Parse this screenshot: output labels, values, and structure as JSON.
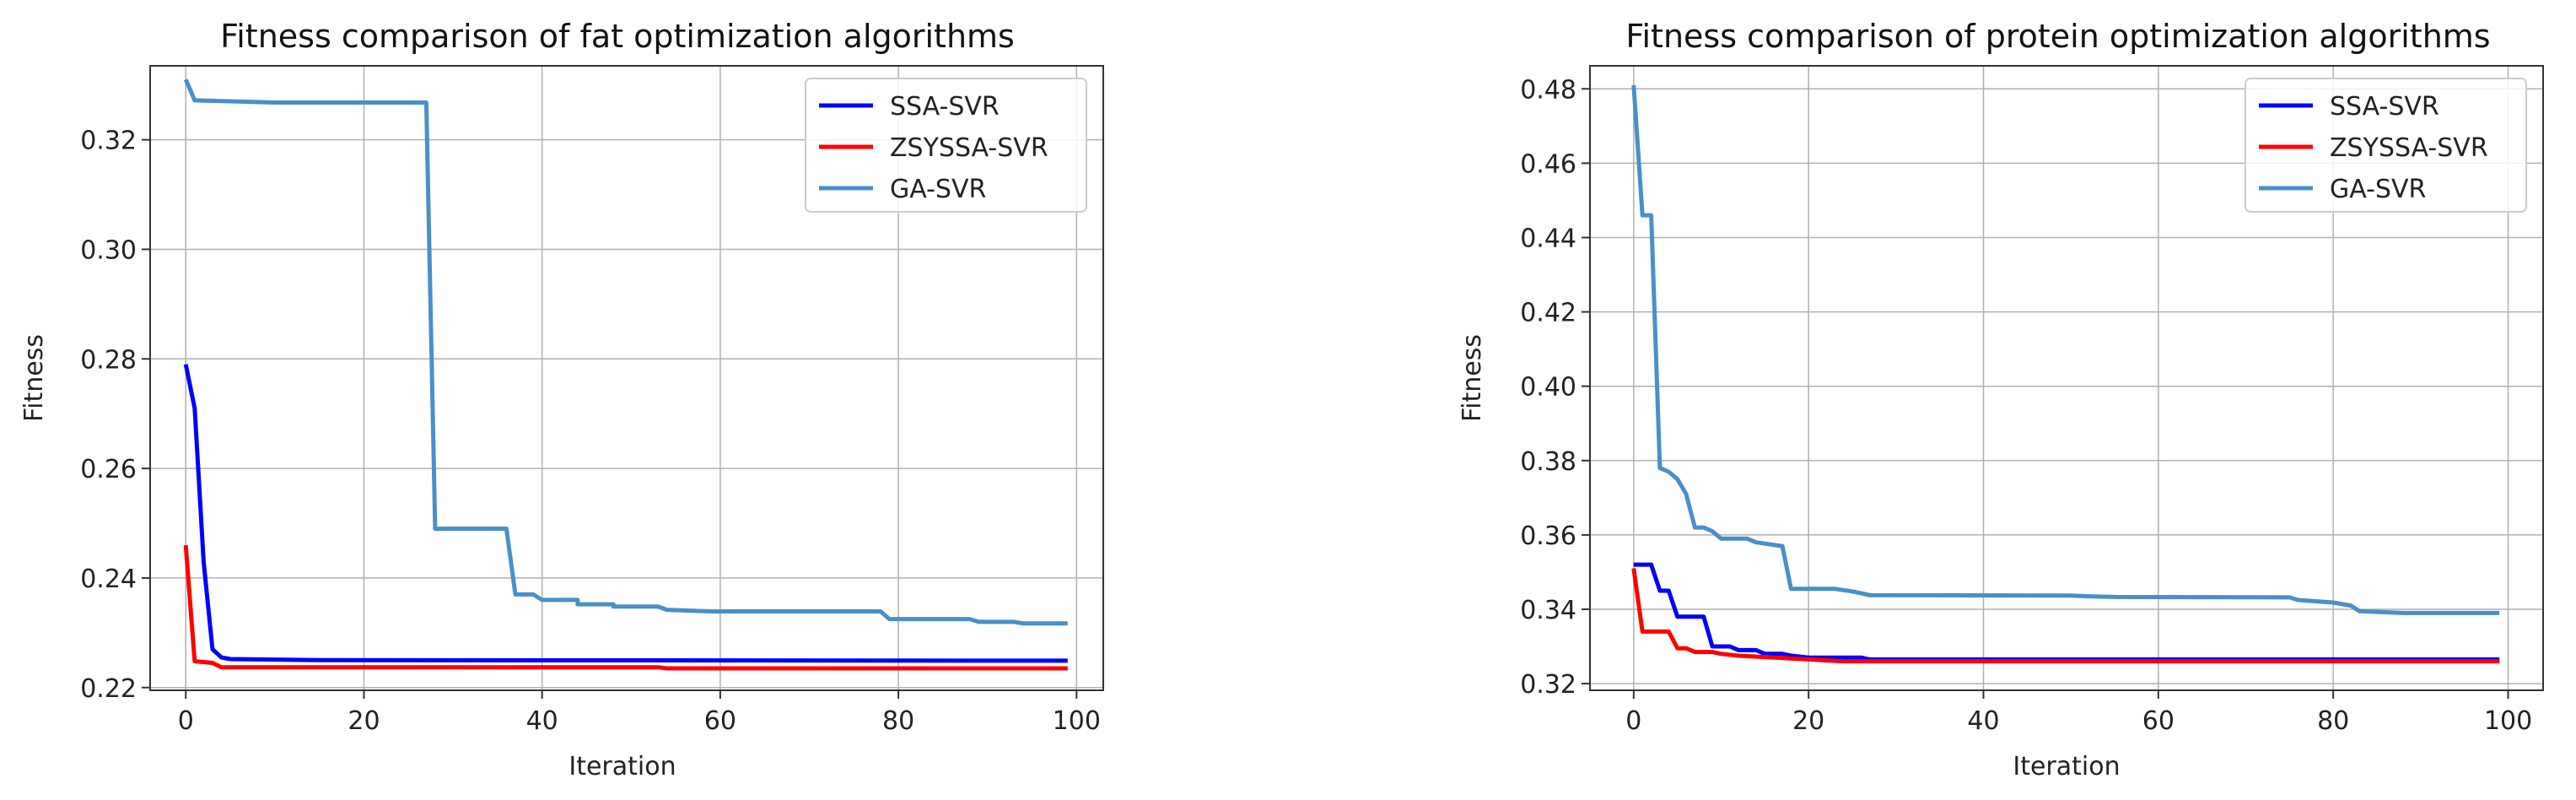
{
  "chart_data": [
    {
      "type": "line",
      "title": "Fitness comparison of fat optimization algorithms",
      "xlabel": "Iteration",
      "ylabel": "Fitness",
      "xlim": [
        -4,
        103
      ],
      "ylim": [
        0.2195,
        0.3335
      ],
      "xticks": [
        0,
        20,
        40,
        60,
        80,
        100
      ],
      "yticks": [
        0.22,
        0.24,
        0.26,
        0.28,
        0.3,
        0.32
      ],
      "ytick_labels": [
        "0.22",
        "0.24",
        "0.26",
        "0.28",
        "0.30",
        "0.32"
      ],
      "grid": true,
      "legend_position": "top-right",
      "series": [
        {
          "name": "SSA-SVR",
          "color": "#0000ff",
          "points": [
            [
              0,
              0.279
            ],
            [
              1,
              0.271
            ],
            [
              2,
              0.243
            ],
            [
              3,
              0.227
            ],
            [
              4,
              0.2255
            ],
            [
              5,
              0.2252
            ],
            [
              15,
              0.225
            ],
            [
              99,
              0.2249
            ]
          ]
        },
        {
          "name": "ZSYSSA-SVR",
          "color": "#ff0000",
          "points": [
            [
              0,
              0.246
            ],
            [
              1,
              0.2248
            ],
            [
              3,
              0.2245
            ],
            [
              4,
              0.2237
            ],
            [
              53,
              0.2237
            ],
            [
              54,
              0.2235
            ],
            [
              99,
              0.2235
            ]
          ]
        },
        {
          "name": "GA-SVR",
          "color": "#4a8fc8",
          "points": [
            [
              0,
              0.331
            ],
            [
              1,
              0.3272
            ],
            [
              10,
              0.3268
            ],
            [
              26,
              0.3268
            ],
            [
              27,
              0.3268
            ],
            [
              28,
              0.249
            ],
            [
              36,
              0.249
            ],
            [
              37,
              0.237
            ],
            [
              39,
              0.237
            ],
            [
              40,
              0.236
            ],
            [
              44,
              0.236
            ],
            [
              44,
              0.2352
            ],
            [
              48,
              0.2352
            ],
            [
              48,
              0.2348
            ],
            [
              53,
              0.2348
            ],
            [
              54,
              0.2342
            ],
            [
              59,
              0.2339
            ],
            [
              78,
              0.2339
            ],
            [
              79,
              0.2325
            ],
            [
              88,
              0.2325
            ],
            [
              89,
              0.232
            ],
            [
              93,
              0.232
            ],
            [
              94,
              0.2317
            ],
            [
              99,
              0.2317
            ]
          ]
        }
      ]
    },
    {
      "type": "line",
      "title": "Fitness comparison of protein optimization algorithms",
      "xlabel": "Iteration",
      "ylabel": "Fitness",
      "xlim": [
        -5,
        104
      ],
      "ylim": [
        0.3182,
        0.4862
      ],
      "xticks": [
        0,
        20,
        40,
        60,
        80,
        100
      ],
      "yticks": [
        0.32,
        0.34,
        0.36,
        0.38,
        0.4,
        0.42,
        0.44,
        0.46,
        0.48
      ],
      "ytick_labels": [
        "0.32",
        "0.34",
        "0.36",
        "0.38",
        "0.40",
        "0.42",
        "0.44",
        "0.46",
        "0.48"
      ],
      "grid": true,
      "legend_position": "top-right",
      "series": [
        {
          "name": "SSA-SVR",
          "color": "#0000ff",
          "points": [
            [
              0,
              0.352
            ],
            [
              2,
              0.352
            ],
            [
              3,
              0.345
            ],
            [
              4,
              0.345
            ],
            [
              5,
              0.338
            ],
            [
              8,
              0.338
            ],
            [
              9,
              0.33
            ],
            [
              11,
              0.33
            ],
            [
              12,
              0.329
            ],
            [
              14,
              0.329
            ],
            [
              15,
              0.328
            ],
            [
              17,
              0.328
            ],
            [
              18,
              0.3275
            ],
            [
              20,
              0.327
            ],
            [
              26,
              0.327
            ],
            [
              27,
              0.3265
            ],
            [
              99,
              0.3265
            ]
          ]
        },
        {
          "name": "ZSYSSA-SVR",
          "color": "#ff0000",
          "points": [
            [
              0,
              0.351
            ],
            [
              1,
              0.334
            ],
            [
              4,
              0.334
            ],
            [
              5,
              0.3295
            ],
            [
              6,
              0.3295
            ],
            [
              7,
              0.3285
            ],
            [
              9,
              0.3285
            ],
            [
              10,
              0.328
            ],
            [
              12,
              0.3275
            ],
            [
              20,
              0.3265
            ],
            [
              24,
              0.326
            ],
            [
              99,
              0.326
            ]
          ]
        },
        {
          "name": "GA-SVR",
          "color": "#4a8fc8",
          "points": [
            [
              0,
              0.481
            ],
            [
              1,
              0.446
            ],
            [
              2,
              0.446
            ],
            [
              3,
              0.378
            ],
            [
              4,
              0.377
            ],
            [
              5,
              0.375
            ],
            [
              6,
              0.371
            ],
            [
              7,
              0.362
            ],
            [
              8,
              0.362
            ],
            [
              9,
              0.361
            ],
            [
              10,
              0.359
            ],
            [
              13,
              0.359
            ],
            [
              14,
              0.358
            ],
            [
              17,
              0.357
            ],
            [
              18,
              0.3455
            ],
            [
              23,
              0.3455
            ],
            [
              25,
              0.3448
            ],
            [
              27,
              0.3438
            ],
            [
              50,
              0.3437
            ],
            [
              52,
              0.3435
            ],
            [
              55,
              0.3433
            ],
            [
              75,
              0.3432
            ],
            [
              76,
              0.3425
            ],
            [
              80,
              0.3418
            ],
            [
              82,
              0.341
            ],
            [
              83,
              0.3395
            ],
            [
              88,
              0.339
            ],
            [
              99,
              0.339
            ]
          ]
        }
      ]
    }
  ]
}
